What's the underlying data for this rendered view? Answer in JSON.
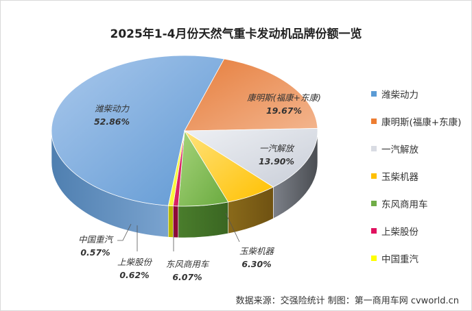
{
  "chart_data": {
    "type": "pie",
    "title": "2025年1-4月份天然气重卡发动机品牌份额一览",
    "slices": [
      {
        "name": "潍柴动力",
        "value": 52.86,
        "label": "52.86%",
        "color": "#5b9bd5"
      },
      {
        "name": "康明斯(福康+东康)",
        "value": 19.67,
        "label": "19.67%",
        "color": "#ed7d31"
      },
      {
        "name": "一汽解放",
        "value": 13.9,
        "label": "13.90%",
        "color": "#d9dce3"
      },
      {
        "name": "玉柴机器",
        "value": 6.3,
        "label": "6.30%",
        "color": "#ffc000"
      },
      {
        "name": "东风商用车",
        "value": 6.07,
        "label": "6.07%",
        "color": "#70ad47"
      },
      {
        "name": "上柴股份",
        "value": 0.62,
        "label": "0.62%",
        "color": "#e0115f"
      },
      {
        "name": "中国重汽",
        "value": 0.57,
        "label": "0.57%",
        "color": "#ffff00"
      }
    ],
    "legend_position": "right"
  },
  "source_note": "数据来源：交强险统计  制图：第一商用车网 cvworld.cn"
}
